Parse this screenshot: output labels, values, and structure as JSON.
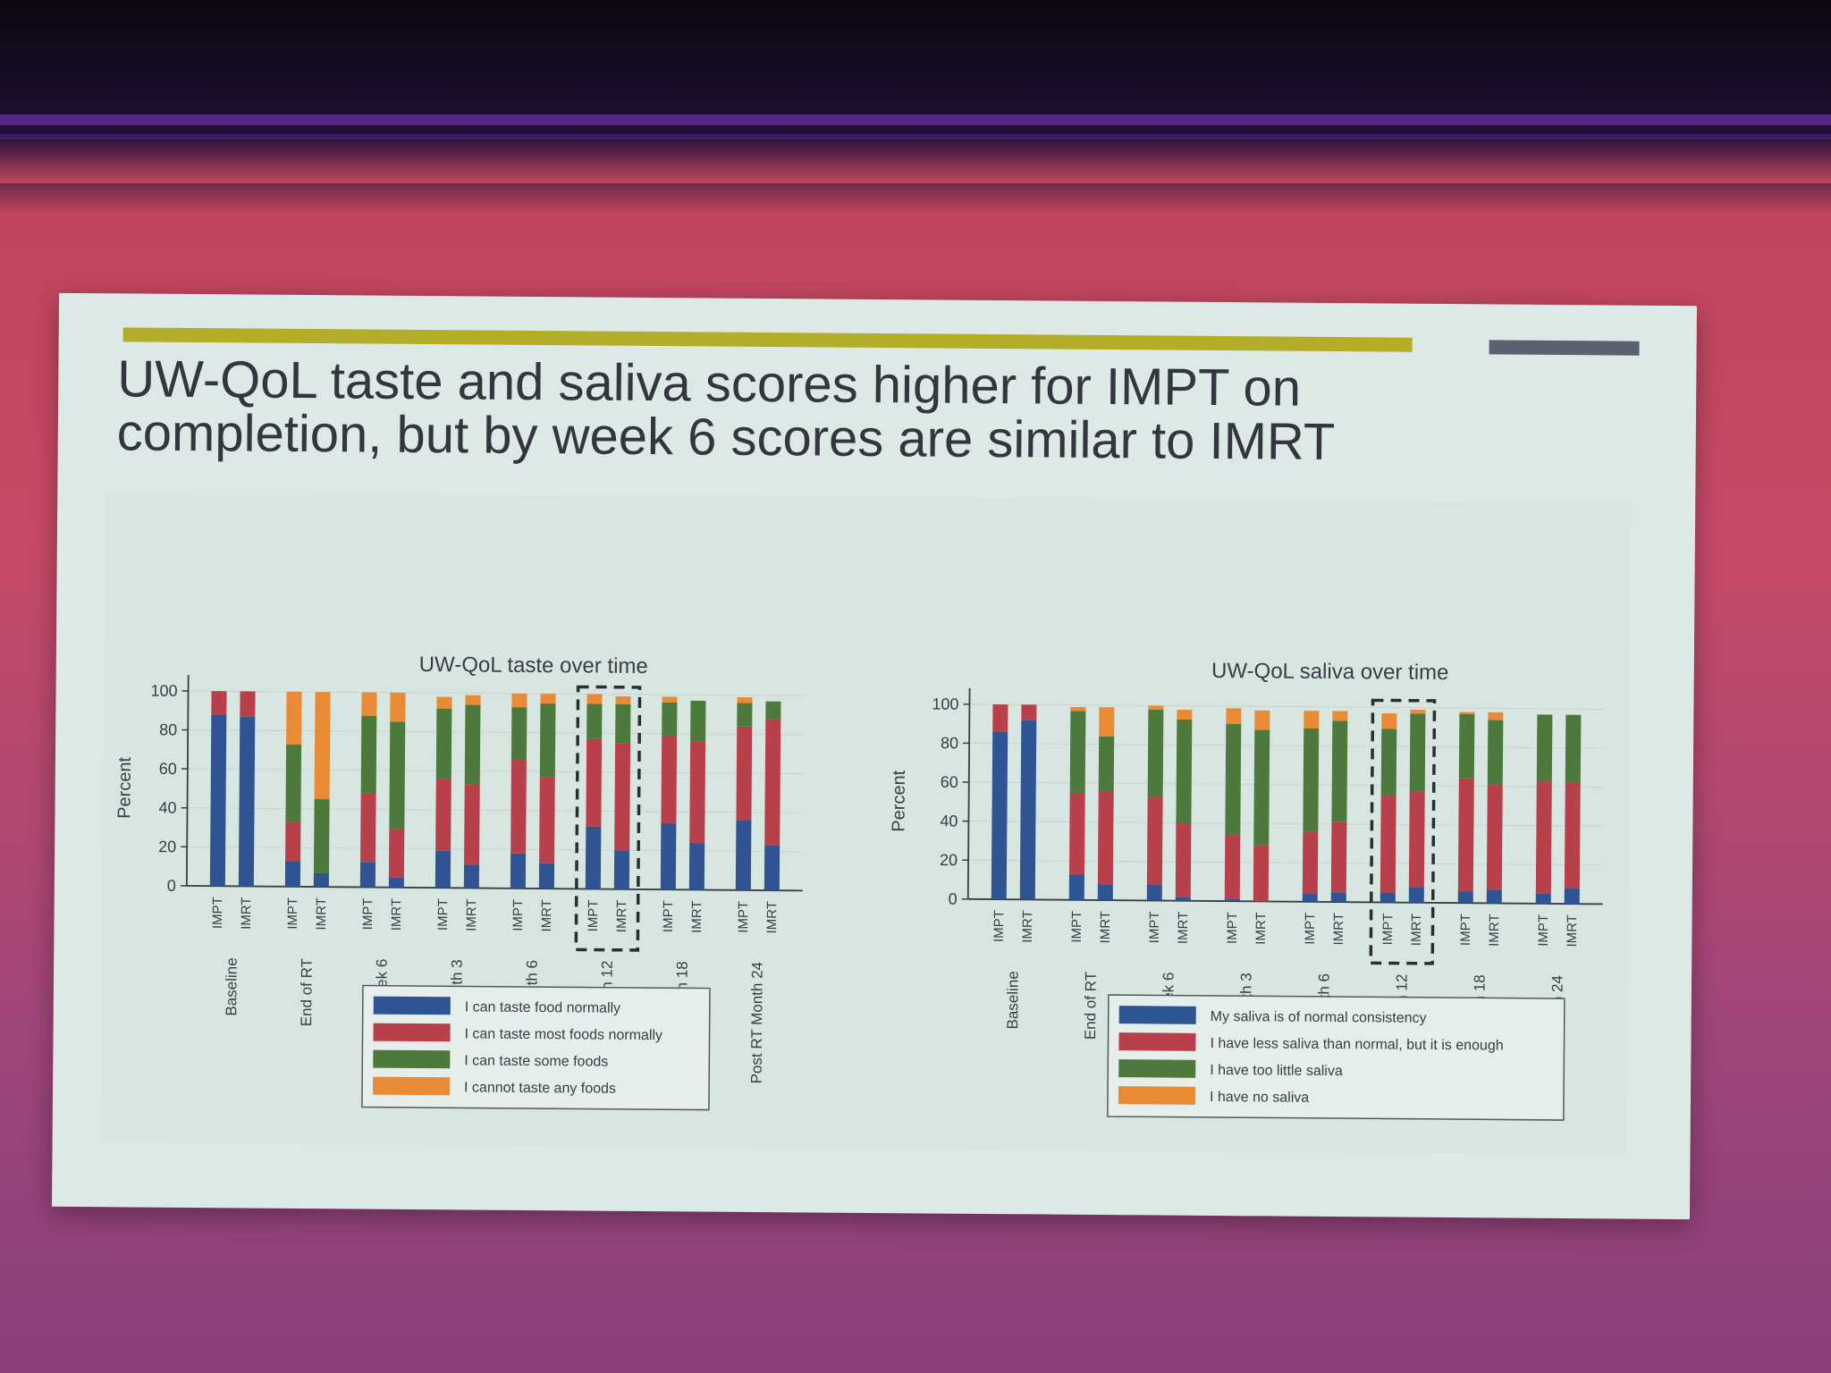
{
  "slide": {
    "title": "UW-QoL taste and saliva scores higher for IMPT on completion, but by week 6 scores are similar to IMRT"
  },
  "colors": {
    "blue": "#2f5494",
    "red": "#b7404a",
    "green": "#4d7a3c",
    "orange": "#e98a35",
    "accent_bar": "#b3ad2a",
    "slide_bg": "#dde9e6"
  },
  "chart_data": [
    {
      "type": "bar",
      "stacked": true,
      "title": "UW-QoL taste over time",
      "ylabel": "Percent",
      "ylim": [
        0,
        100
      ],
      "yticks": [
        0,
        20,
        40,
        60,
        80,
        100
      ],
      "groups": [
        "Baseline",
        "End of RT",
        "Post RT Week 6",
        "Post RT Month 3",
        "Post RT Month 6",
        "Post RT Month 12",
        "Post RT Month 18",
        "Post RT Month 24"
      ],
      "arms": [
        "IMPT",
        "IMRT"
      ],
      "highlighted_group": "Post RT Month 12",
      "series": [
        {
          "name": "I can taste food normally",
          "color": "#2f5494",
          "values": [
            [
              88,
              87
            ],
            [
              13,
              7
            ],
            [
              13,
              5
            ],
            [
              19,
              12
            ],
            [
              18,
              13
            ],
            [
              32,
              20
            ],
            [
              34,
              24
            ],
            [
              36,
              23
            ]
          ]
        },
        {
          "name": "I can taste most foods normally",
          "color": "#b7404a",
          "values": [
            [
              12,
              13
            ],
            [
              20,
              0
            ],
            [
              35,
              25
            ],
            [
              37,
              41
            ],
            [
              48,
              44
            ],
            [
              45,
              55
            ],
            [
              45,
              52
            ],
            [
              48,
              65
            ]
          ]
        },
        {
          "name": "I can taste some foods",
          "color": "#4d7a3c",
          "values": [
            [
              0,
              0
            ],
            [
              40,
              38
            ],
            [
              40,
              55
            ],
            [
              36,
              41
            ],
            [
              27,
              38
            ],
            [
              18,
              20
            ],
            [
              17,
              21
            ],
            [
              12,
              9
            ]
          ]
        },
        {
          "name": "I cannot taste any foods",
          "color": "#e98a35",
          "values": [
            [
              0,
              0
            ],
            [
              27,
              55
            ],
            [
              12,
              15
            ],
            [
              6,
              5
            ],
            [
              7,
              5
            ],
            [
              5,
              4
            ],
            [
              3,
              0
            ],
            [
              3,
              0
            ]
          ]
        }
      ]
    },
    {
      "type": "bar",
      "stacked": true,
      "title": "UW-QoL saliva over time",
      "ylabel": "Percent",
      "ylim": [
        0,
        100
      ],
      "yticks": [
        0,
        20,
        40,
        60,
        80,
        100
      ],
      "groups": [
        "Baseline",
        "End of RT",
        "Post RT Week 6",
        "Post RT Month 3",
        "Post RT Month 6",
        "Post RT Month 12",
        "Post RT Month 18",
        "Post RT Month 24"
      ],
      "arms": [
        "IMPT",
        "IMRT"
      ],
      "highlighted_group": "Post RT Month 12",
      "series": [
        {
          "name": "My saliva is of normal consistency",
          "color": "#2f5494",
          "values": [
            [
              86,
              92
            ],
            [
              13,
              8
            ],
            [
              8,
              2
            ],
            [
              1,
              0
            ],
            [
              4,
              5
            ],
            [
              5,
              8
            ],
            [
              6,
              7
            ],
            [
              5,
              8
            ]
          ]
        },
        {
          "name": "I have less saliva than normal, but it is enough",
          "color": "#b7404a",
          "values": [
            [
              14,
              8
            ],
            [
              42,
              48
            ],
            [
              45,
              38
            ],
            [
              33,
              29
            ],
            [
              32,
              36
            ],
            [
              50,
              49
            ],
            [
              58,
              54
            ],
            [
              58,
              54
            ]
          ]
        },
        {
          "name": "I have too little saliva",
          "color": "#4d7a3c",
          "values": [
            [
              0,
              0
            ],
            [
              42,
              28
            ],
            [
              45,
              53
            ],
            [
              57,
              59
            ],
            [
              53,
              52
            ],
            [
              34,
              40
            ],
            [
              33,
              33
            ],
            [
              34,
              35
            ]
          ]
        },
        {
          "name": "I have no saliva",
          "color": "#e98a35",
          "values": [
            [
              0,
              0
            ],
            [
              2,
              15
            ],
            [
              2,
              5
            ],
            [
              8,
              10
            ],
            [
              9,
              5
            ],
            [
              8,
              2
            ],
            [
              1,
              4
            ],
            [
              0,
              0
            ]
          ]
        }
      ]
    }
  ]
}
